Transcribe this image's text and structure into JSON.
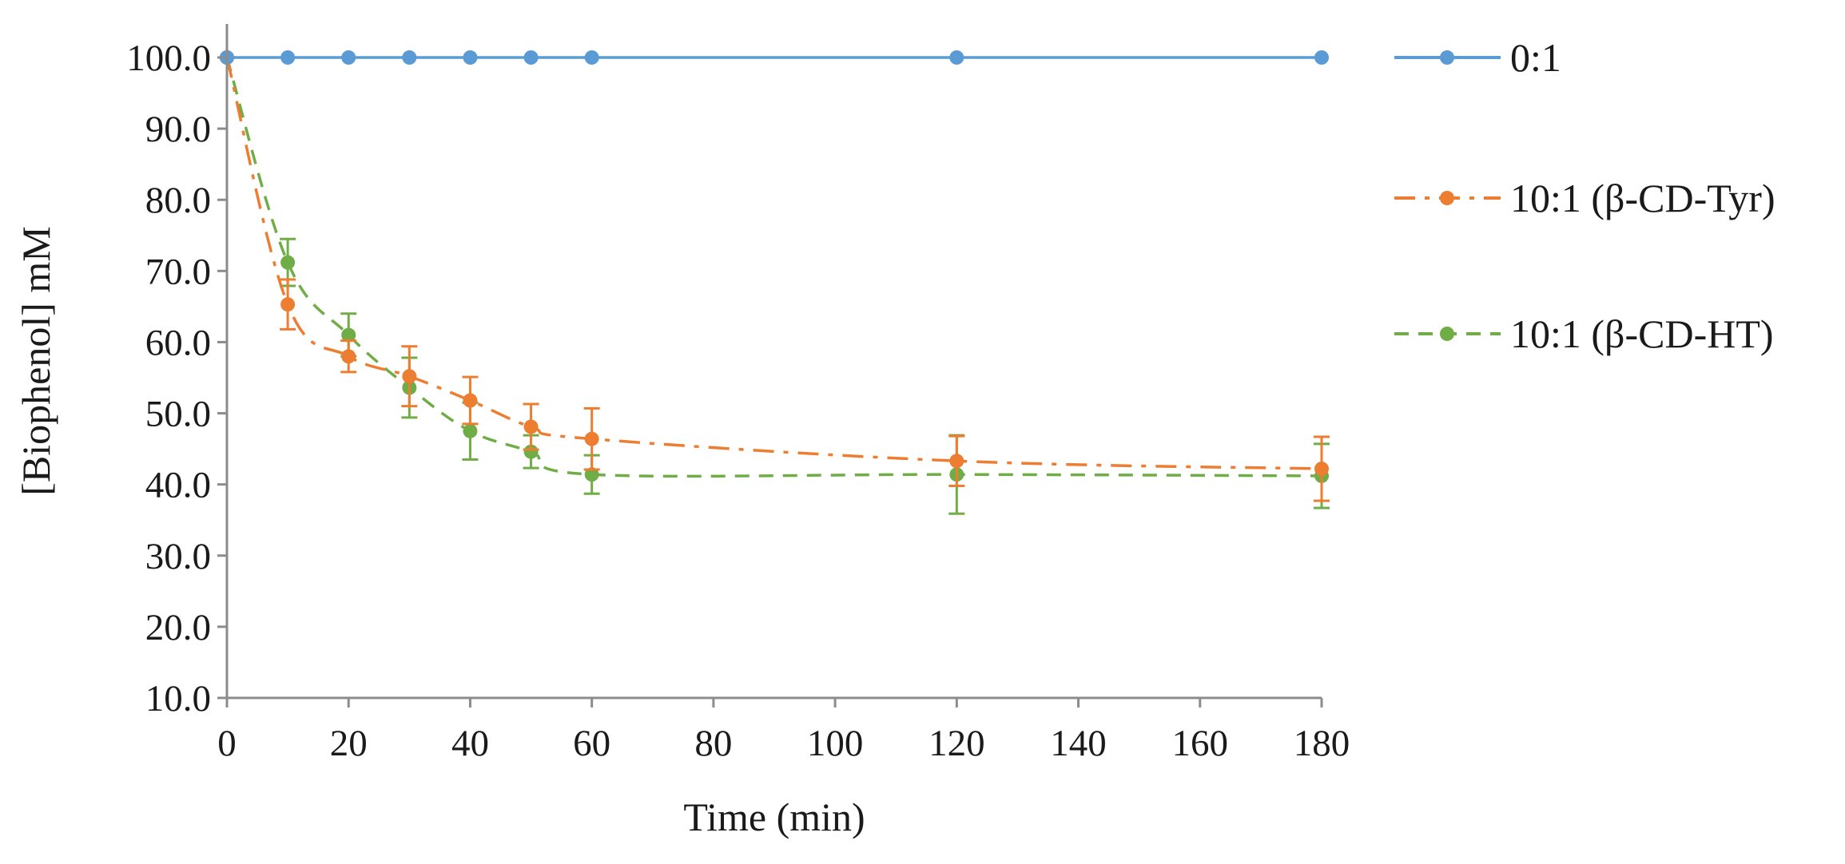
{
  "chart_data": {
    "type": "line",
    "title": "",
    "xlabel": "Time (min)",
    "ylabel": "[Biophenol] mM",
    "xlim": [
      0,
      180
    ],
    "ylim": [
      10,
      100
    ],
    "xticks": [
      0,
      20,
      40,
      60,
      80,
      100,
      120,
      140,
      160,
      180
    ],
    "yticks": [
      10,
      20,
      30,
      40,
      50,
      60,
      70,
      80,
      90,
      100
    ],
    "xtick_labels": [
      "0",
      "20",
      "40",
      "60",
      "80",
      "100",
      "120",
      "140",
      "160",
      "180"
    ],
    "ytick_labels": [
      "10.0",
      "20.0",
      "30.0",
      "40.0",
      "50.0",
      "60.0",
      "70.0",
      "80.0",
      "90.0",
      "100.0"
    ],
    "grid": false,
    "legend_position": "right",
    "series": [
      {
        "name": "0:1",
        "color": "#5b9bd5",
        "line_style": "solid",
        "x": [
          0,
          10,
          20,
          30,
          40,
          50,
          60,
          120,
          180
        ],
        "y": [
          100.0,
          100.0,
          100.0,
          100.0,
          100.0,
          100.0,
          100.0,
          100.0,
          100.0
        ],
        "error": [
          0,
          0,
          0,
          0,
          0,
          0,
          0,
          0,
          0
        ]
      },
      {
        "name": "10:1 (β-CD-Tyr)",
        "color": "#ed7d31",
        "line_style": "dash-dot",
        "x": [
          0,
          10,
          20,
          30,
          40,
          50,
          60,
          120,
          180
        ],
        "y": [
          100.0,
          65.3,
          58.0,
          55.2,
          51.8,
          48.1,
          46.4,
          43.3,
          42.2
        ],
        "error": [
          0,
          3.5,
          2.2,
          4.2,
          3.3,
          3.2,
          4.3,
          3.5,
          4.5
        ]
      },
      {
        "name": "10:1 (β-CD-HT)",
        "color": "#70ad47",
        "line_style": "dashed",
        "x": [
          0,
          10,
          20,
          30,
          40,
          50,
          60,
          120,
          180
        ],
        "y": [
          100.0,
          71.2,
          61.0,
          53.6,
          47.5,
          44.6,
          41.4,
          41.4,
          41.2
        ],
        "error": [
          0,
          3.3,
          3.0,
          4.2,
          4.0,
          2.3,
          2.7,
          5.5,
          4.5
        ]
      }
    ]
  }
}
